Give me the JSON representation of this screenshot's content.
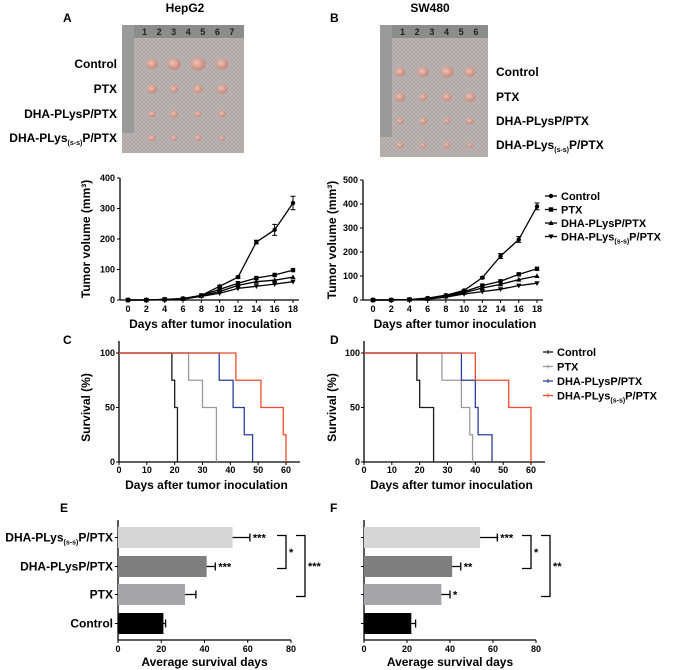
{
  "groups": {
    "control": "Control",
    "ptx": "PTX",
    "dha": "DHA-PLysP/PTX",
    "dha_ss": {
      "pre": "DHA-PLys",
      "sub": "(s-s)",
      "post": "P/PTX"
    }
  },
  "panels": {
    "A": {
      "letter": "A",
      "title": "HepG2"
    },
    "B": {
      "letter": "B",
      "title": "SW480"
    },
    "C": {
      "letter": "C"
    },
    "D": {
      "letter": "D"
    },
    "E": {
      "letter": "E"
    },
    "F": {
      "letter": "F"
    }
  },
  "photos": {
    "A": {
      "ruler_marks": [
        "1",
        "2",
        "3",
        "4",
        "5",
        "6",
        "7"
      ]
    },
    "B": {
      "ruler_marks": [
        "1",
        "2",
        "3",
        "4",
        "5",
        "6"
      ]
    }
  },
  "chart_data": [
    {
      "panel": "A",
      "type": "line",
      "xlabel": "Days after tumor inoculation",
      "ylabel": "Tumor volume (mm³)",
      "xlim": [
        0,
        18
      ],
      "ylim": [
        0,
        400
      ],
      "xticks": [
        0,
        2,
        4,
        6,
        8,
        10,
        12,
        14,
        16,
        18
      ],
      "yticks": [
        0,
        100,
        200,
        300,
        400
      ],
      "x": [
        0,
        2,
        4,
        6,
        8,
        10,
        12,
        14,
        16,
        18
      ],
      "series": [
        {
          "group": "control",
          "values": [
            0,
            0,
            2,
            5,
            15,
            45,
            75,
            190,
            230,
            318
          ],
          "err": [
            0,
            0,
            0,
            1,
            2,
            3,
            4,
            6,
            18,
            22
          ]
        },
        {
          "group": "ptx",
          "values": [
            0,
            0,
            2,
            4,
            15,
            35,
            55,
            72,
            82,
            98
          ]
        },
        {
          "group": "dha",
          "values": [
            0,
            0,
            2,
            4,
            13,
            28,
            48,
            60,
            65,
            75
          ]
        },
        {
          "group": "dha_ss",
          "values": [
            0,
            0,
            1,
            3,
            12,
            22,
            38,
            45,
            52,
            60
          ]
        }
      ]
    },
    {
      "panel": "B",
      "type": "line",
      "xlabel": "Days after tumor inoculation",
      "ylabel": "Tumor volume (mm³)",
      "xlim": [
        0,
        18
      ],
      "ylim": [
        0,
        500
      ],
      "xticks": [
        0,
        2,
        4,
        6,
        8,
        10,
        12,
        14,
        16,
        18
      ],
      "yticks": [
        0,
        100,
        200,
        300,
        400,
        500
      ],
      "x": [
        0,
        2,
        4,
        6,
        8,
        10,
        12,
        14,
        16,
        18
      ],
      "legend": "right",
      "series": [
        {
          "group": "control",
          "values": [
            0,
            0,
            2,
            8,
            20,
            40,
            93,
            183,
            252,
            390
          ],
          "err": [
            0,
            0,
            0,
            1,
            2,
            3,
            4,
            10,
            12,
            14
          ]
        },
        {
          "group": "ptx",
          "values": [
            0,
            0,
            2,
            6,
            18,
            35,
            60,
            78,
            107,
            130
          ]
        },
        {
          "group": "dha",
          "values": [
            0,
            0,
            2,
            5,
            15,
            30,
            50,
            65,
            85,
            100
          ]
        },
        {
          "group": "dha_ss",
          "values": [
            0,
            0,
            1,
            4,
            12,
            25,
            35,
            45,
            60,
            70
          ]
        }
      ]
    },
    {
      "panel": "C",
      "type": "line",
      "subtype": "kaplan-meier",
      "xlabel": "Days after tumor inoculation",
      "ylabel": "Survival (%)",
      "xlim": [
        0,
        65
      ],
      "ylim": [
        0,
        100
      ],
      "xticks": [
        0,
        10,
        20,
        30,
        40,
        50,
        60
      ],
      "yticks": [
        0,
        50,
        100
      ],
      "series": [
        {
          "group": "control",
          "color": "#1a1a1a",
          "steps": [
            [
              0,
              100
            ],
            [
              19,
              75
            ],
            [
              20,
              50
            ],
            [
              21,
              0
            ]
          ]
        },
        {
          "group": "ptx",
          "color": "#9a9a9a",
          "steps": [
            [
              0,
              100
            ],
            [
              25,
              75
            ],
            [
              30,
              50
            ],
            [
              35,
              0
            ]
          ]
        },
        {
          "group": "dha",
          "color": "#2b3f9e",
          "steps": [
            [
              0,
              100
            ],
            [
              36,
              75
            ],
            [
              41,
              50
            ],
            [
              45,
              25
            ],
            [
              48,
              0
            ]
          ]
        },
        {
          "group": "dha_ss",
          "color": "#f04a2a",
          "steps": [
            [
              0,
              100
            ],
            [
              42,
              75
            ],
            [
              51,
              50
            ],
            [
              59,
              25
            ],
            [
              60,
              0
            ]
          ]
        }
      ]
    },
    {
      "panel": "D",
      "type": "line",
      "subtype": "kaplan-meier",
      "xlabel": "Days after tumor inoculation",
      "ylabel": "Survival (%)",
      "xlim": [
        0,
        65
      ],
      "ylim": [
        0,
        100
      ],
      "xticks": [
        0,
        10,
        20,
        30,
        40,
        50,
        60
      ],
      "yticks": [
        0,
        50,
        100
      ],
      "legend": "right",
      "series": [
        {
          "group": "control",
          "color": "#1a1a1a",
          "steps": [
            [
              0,
              100
            ],
            [
              19,
              75
            ],
            [
              20,
              50
            ],
            [
              25,
              0
            ]
          ]
        },
        {
          "group": "ptx",
          "color": "#9a9a9a",
          "steps": [
            [
              0,
              100
            ],
            [
              28,
              75
            ],
            [
              35,
              50
            ],
            [
              38,
              25
            ],
            [
              39,
              0
            ]
          ]
        },
        {
          "group": "dha",
          "color": "#2b3f9e",
          "steps": [
            [
              0,
              100
            ],
            [
              35,
              75
            ],
            [
              40,
              50
            ],
            [
              41,
              25
            ],
            [
              46,
              0
            ]
          ]
        },
        {
          "group": "dha_ss",
          "color": "#f04a2a",
          "steps": [
            [
              0,
              100
            ],
            [
              40,
              75
            ],
            [
              52,
              50
            ],
            [
              60,
              0
            ]
          ]
        }
      ]
    },
    {
      "panel": "E",
      "type": "bar",
      "orientation": "horizontal",
      "xlabel": "Average survival days",
      "xlim": [
        0,
        80
      ],
      "xticks": [
        0,
        20,
        40,
        60,
        80
      ],
      "categories": [
        "dha_ss",
        "dha",
        "ptx",
        "control"
      ],
      "values": [
        53,
        41,
        31,
        21
      ],
      "errors": [
        8,
        4,
        5,
        1
      ],
      "colors": [
        "#d6d6d6",
        "#7f7f7f",
        "#a6a6a8",
        "#000000"
      ],
      "sig": [
        "***",
        "***",
        "",
        ""
      ],
      "brackets": [
        {
          "from": 0,
          "to": 1,
          "label": "*"
        },
        {
          "from": 0,
          "to": 2,
          "label": "***"
        }
      ],
      "show_category_labels": true
    },
    {
      "panel": "F",
      "type": "bar",
      "orientation": "horizontal",
      "xlabel": "Average survival days",
      "xlim": [
        0,
        80
      ],
      "xticks": [
        0,
        20,
        40,
        60,
        80
      ],
      "categories": [
        "dha_ss",
        "dha",
        "ptx",
        "control"
      ],
      "values": [
        54,
        41,
        36,
        22
      ],
      "errors": [
        8,
        4,
        4,
        2
      ],
      "colors": [
        "#d6d6d6",
        "#7f7f7f",
        "#a6a6a8",
        "#000000"
      ],
      "sig": [
        "***",
        "**",
        "*",
        ""
      ],
      "brackets": [
        {
          "from": 0,
          "to": 1,
          "label": "*"
        },
        {
          "from": 0,
          "to": 2,
          "label": "**"
        }
      ],
      "show_category_labels": false
    }
  ]
}
